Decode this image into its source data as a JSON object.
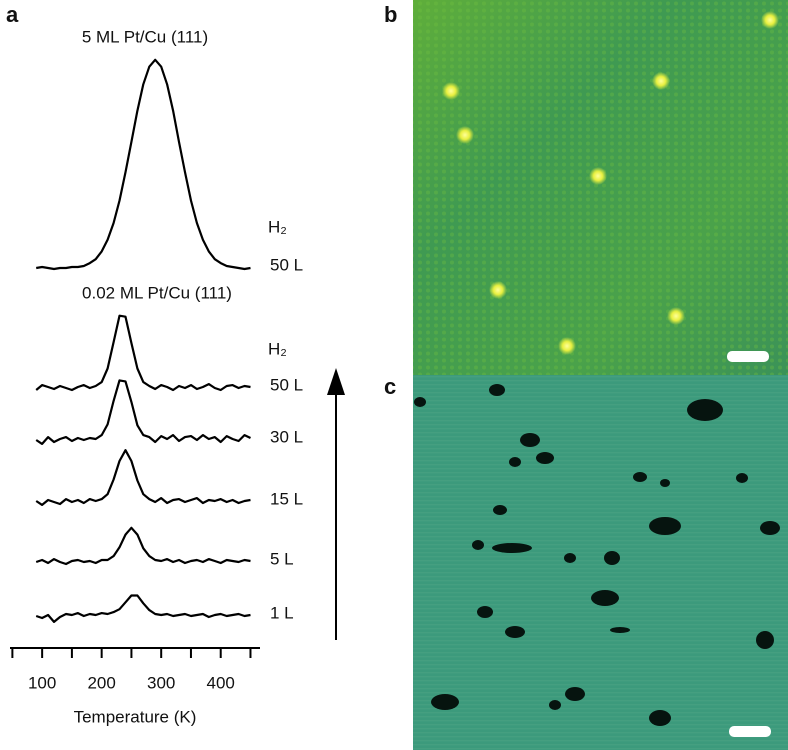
{
  "chart_data": {
    "type": "line",
    "panel_label": "a",
    "title": "5 ML Pt/Cu (111)",
    "subtitle": "0.02 ML Pt/Cu (111)",
    "x_label": "Temperature (K)",
    "gas_label": "H₂",
    "color": "#000000",
    "xlim": [
      46,
      466
    ],
    "xticks": [
      100,
      200,
      300,
      400
    ],
    "x_minor_ticks": [
      50,
      150,
      250,
      350,
      450
    ],
    "ylim": [
      0,
      220
    ],
    "x": [
      90,
      100,
      110,
      120,
      130,
      140,
      150,
      160,
      170,
      180,
      190,
      200,
      210,
      220,
      230,
      240,
      250,
      260,
      270,
      280,
      290,
      300,
      310,
      320,
      330,
      340,
      350,
      360,
      370,
      380,
      390,
      400,
      410,
      420,
      430,
      440,
      450
    ],
    "series": [
      {
        "name": "50 L",
        "values": [
          0,
          1,
          0,
          -1,
          0,
          0,
          1,
          1,
          2,
          5,
          9,
          17,
          29,
          46,
          69,
          98,
          129,
          161,
          188,
          206,
          213,
          206,
          188,
          161,
          129,
          98,
          69,
          46,
          29,
          17,
          9,
          5,
          2,
          1,
          0,
          -1,
          0
        ]
      },
      {
        "name": "50 L",
        "values": [
          -2,
          3,
          1,
          -1,
          2,
          0,
          -2,
          1,
          3,
          0,
          2,
          6,
          20,
          47,
          74,
          73,
          46,
          20,
          6,
          2,
          -1,
          3,
          1,
          -2,
          2,
          0,
          3,
          -1,
          1,
          4,
          0,
          -2,
          2,
          3,
          0,
          2,
          1
        ]
      },
      {
        "name": "30 L",
        "values": [
          0,
          -4,
          3,
          -2,
          1,
          3,
          -1,
          2,
          0,
          2,
          1,
          5,
          16,
          40,
          61,
          60,
          39,
          15,
          5,
          3,
          -2,
          4,
          1,
          5,
          -1,
          3,
          4,
          0,
          5,
          1,
          3,
          -2,
          4,
          1,
          -1,
          5,
          2
        ]
      },
      {
        "name": "15 L",
        "values": [
          1,
          -3,
          2,
          0,
          -2,
          3,
          0,
          2,
          -1,
          3,
          1,
          3,
          8,
          23,
          42,
          53,
          42,
          22,
          8,
          3,
          0,
          4,
          -1,
          2,
          3,
          0,
          2,
          4,
          -1,
          2,
          1,
          3,
          0,
          2,
          -1,
          1,
          2
        ]
      },
      {
        "name": "5 L",
        "values": [
          0,
          2,
          -1,
          3,
          0,
          -2,
          1,
          2,
          0,
          1,
          -1,
          2,
          2,
          6,
          15,
          28,
          35,
          28,
          14,
          6,
          2,
          1,
          3,
          0,
          2,
          -1,
          1,
          2,
          0,
          3,
          1,
          -1,
          2,
          1,
          0,
          2,
          1
        ]
      },
      {
        "name": "1 L",
        "values": [
          0,
          -2,
          1,
          -6,
          -1,
          2,
          1,
          3,
          0,
          2,
          1,
          3,
          2,
          4,
          7,
          14,
          21,
          21,
          13,
          6,
          2,
          1,
          2,
          0,
          1,
          2,
          0,
          1,
          2,
          -1,
          1,
          2,
          0,
          1,
          2,
          0,
          1
        ]
      }
    ]
  },
  "images": [
    {
      "panel_label": "b"
    },
    {
      "panel_label": "c"
    }
  ]
}
